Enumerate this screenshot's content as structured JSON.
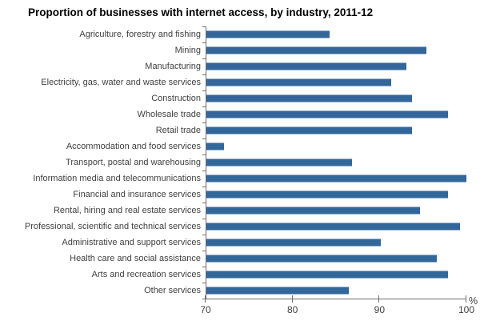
{
  "chart_data": {
    "type": "bar",
    "orientation": "horizontal",
    "title": "Proportion of businesses with internet access, by industry, 2011-12",
    "xlabel": "",
    "ylabel": "",
    "unit": "%",
    "xlim": [
      70,
      100
    ],
    "xticks": [
      70,
      80,
      90,
      100
    ],
    "grid": false,
    "bar_color": "#336699",
    "axis_color": "#6e6e6e",
    "text_color": "#404040",
    "categories": [
      "Agriculture, forestry and fishing",
      "Mining",
      "Manufacturing",
      "Electricity, gas, water and waste services",
      "Construction",
      "Wholesale trade",
      "Retail trade",
      "Accommodation and food services",
      "Transport, postal and warehousing",
      "Information media and telecommunications",
      "Financial and insurance services",
      "Rental, hiring and real estate services",
      "Professional, scientific and technical services",
      "Administrative and support services",
      "Health care and social assistance",
      "Arts and recreation services",
      "Other services"
    ],
    "values": [
      84.2,
      95.4,
      93.1,
      91.3,
      93.7,
      97.9,
      93.7,
      72.0,
      86.8,
      100.0,
      97.9,
      94.6,
      99.3,
      90.1,
      96.6,
      97.9,
      86.4
    ]
  }
}
